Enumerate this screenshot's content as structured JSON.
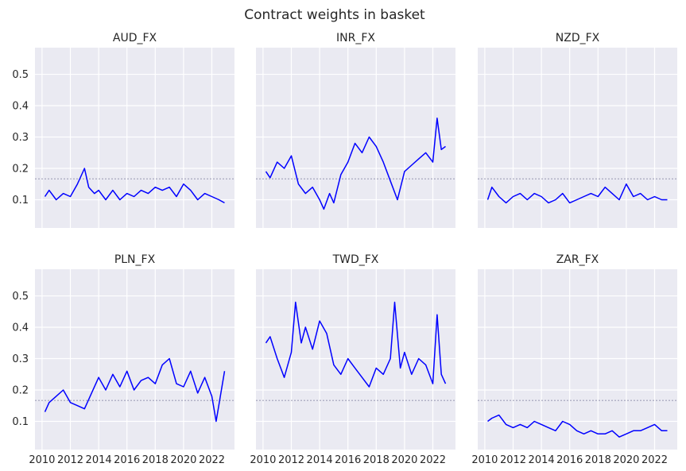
{
  "figure": {
    "title": "Contract weights in basket"
  },
  "chart_data": {
    "type": "line",
    "grid": true,
    "shared_y": true,
    "ylim": [
      0.01,
      0.585
    ],
    "yticks": [
      0.1,
      0.2,
      0.3,
      0.4,
      0.5
    ],
    "ytick_labels": [
      "0.1",
      "0.2",
      "0.3",
      "0.4",
      "0.5"
    ],
    "xlim": [
      2009.5,
      2023.6
    ],
    "xticks": [
      2010,
      2012,
      2014,
      2016,
      2018,
      2020,
      2022
    ],
    "xtick_labels": [
      "2010",
      "2012",
      "2014",
      "2016",
      "2018",
      "2020",
      "2022"
    ],
    "reference_line": {
      "y": 0.1667,
      "style": "dashed",
      "color": "#7a7a9a"
    },
    "line_color": "#0000ff",
    "panels": [
      {
        "title": "AUD_FX",
        "x": [
          2010.2,
          2010.5,
          2011.0,
          2011.5,
          2012.0,
          2012.5,
          2013.0,
          2013.3,
          2013.7,
          2014.0,
          2014.5,
          2015.0,
          2015.5,
          2016.0,
          2016.5,
          2017.0,
          2017.5,
          2018.0,
          2018.5,
          2019.0,
          2019.5,
          2020.0,
          2020.5,
          2021.0,
          2021.5,
          2022.0,
          2022.5,
          2022.9
        ],
        "y": [
          0.11,
          0.13,
          0.1,
          0.12,
          0.11,
          0.15,
          0.2,
          0.14,
          0.12,
          0.13,
          0.1,
          0.13,
          0.1,
          0.12,
          0.11,
          0.13,
          0.12,
          0.14,
          0.13,
          0.14,
          0.11,
          0.15,
          0.13,
          0.1,
          0.12,
          0.11,
          0.1,
          0.09
        ]
      },
      {
        "title": "INR_FX",
        "x": [
          2010.2,
          2010.5,
          2011.0,
          2011.5,
          2012.0,
          2012.5,
          2013.0,
          2013.5,
          2014.0,
          2014.3,
          2014.7,
          2015.0,
          2015.5,
          2016.0,
          2016.5,
          2017.0,
          2017.5,
          2018.0,
          2018.5,
          2019.0,
          2019.5,
          2020.0,
          2020.5,
          2021.0,
          2021.5,
          2022.0,
          2022.3,
          2022.6,
          2022.9
        ],
        "y": [
          0.19,
          0.17,
          0.22,
          0.2,
          0.24,
          0.15,
          0.12,
          0.14,
          0.1,
          0.07,
          0.12,
          0.09,
          0.18,
          0.22,
          0.28,
          0.25,
          0.3,
          0.27,
          0.22,
          0.16,
          0.1,
          0.19,
          0.21,
          0.23,
          0.25,
          0.22,
          0.36,
          0.26,
          0.27
        ]
      },
      {
        "title": "NZD_FX",
        "x": [
          2010.2,
          2010.5,
          2011.0,
          2011.5,
          2012.0,
          2012.5,
          2013.0,
          2013.5,
          2014.0,
          2014.5,
          2015.0,
          2015.5,
          2016.0,
          2016.5,
          2017.0,
          2017.5,
          2018.0,
          2018.5,
          2019.0,
          2019.5,
          2020.0,
          2020.5,
          2021.0,
          2021.5,
          2022.0,
          2022.5,
          2022.9
        ],
        "y": [
          0.1,
          0.14,
          0.11,
          0.09,
          0.11,
          0.12,
          0.1,
          0.12,
          0.11,
          0.09,
          0.1,
          0.12,
          0.09,
          0.1,
          0.11,
          0.12,
          0.11,
          0.14,
          0.12,
          0.1,
          0.15,
          0.11,
          0.12,
          0.1,
          0.11,
          0.1,
          0.1
        ]
      },
      {
        "title": "PLN_FX",
        "x": [
          2010.2,
          2010.5,
          2011.0,
          2011.5,
          2012.0,
          2012.5,
          2013.0,
          2013.5,
          2014.0,
          2014.5,
          2015.0,
          2015.5,
          2016.0,
          2016.5,
          2017.0,
          2017.5,
          2018.0,
          2018.5,
          2019.0,
          2019.5,
          2020.0,
          2020.5,
          2021.0,
          2021.5,
          2022.0,
          2022.3,
          2022.6,
          2022.9
        ],
        "y": [
          0.13,
          0.16,
          0.18,
          0.2,
          0.16,
          0.15,
          0.14,
          0.19,
          0.24,
          0.2,
          0.25,
          0.21,
          0.26,
          0.2,
          0.23,
          0.24,
          0.22,
          0.28,
          0.3,
          0.22,
          0.21,
          0.26,
          0.19,
          0.24,
          0.18,
          0.1,
          0.18,
          0.26
        ]
      },
      {
        "title": "TWD_FX",
        "x": [
          2010.2,
          2010.5,
          2011.0,
          2011.5,
          2012.0,
          2012.3,
          2012.7,
          2013.0,
          2013.5,
          2014.0,
          2014.5,
          2015.0,
          2015.5,
          2016.0,
          2016.5,
          2017.0,
          2017.5,
          2018.0,
          2018.5,
          2019.0,
          2019.3,
          2019.7,
          2020.0,
          2020.5,
          2021.0,
          2021.5,
          2022.0,
          2022.3,
          2022.6,
          2022.9
        ],
        "y": [
          0.35,
          0.37,
          0.3,
          0.24,
          0.32,
          0.48,
          0.35,
          0.4,
          0.33,
          0.42,
          0.38,
          0.28,
          0.25,
          0.3,
          0.27,
          0.24,
          0.21,
          0.27,
          0.25,
          0.3,
          0.48,
          0.27,
          0.32,
          0.25,
          0.3,
          0.28,
          0.22,
          0.44,
          0.25,
          0.22
        ]
      },
      {
        "title": "ZAR_FX",
        "x": [
          2010.2,
          2010.5,
          2011.0,
          2011.5,
          2012.0,
          2012.5,
          2013.0,
          2013.5,
          2014.0,
          2014.5,
          2015.0,
          2015.5,
          2016.0,
          2016.5,
          2017.0,
          2017.5,
          2018.0,
          2018.5,
          2019.0,
          2019.5,
          2020.0,
          2020.5,
          2021.0,
          2021.5,
          2022.0,
          2022.5,
          2022.9
        ],
        "y": [
          0.1,
          0.11,
          0.12,
          0.09,
          0.08,
          0.09,
          0.08,
          0.1,
          0.09,
          0.08,
          0.07,
          0.1,
          0.09,
          0.07,
          0.06,
          0.07,
          0.06,
          0.06,
          0.07,
          0.05,
          0.06,
          0.07,
          0.07,
          0.08,
          0.09,
          0.07,
          0.07
        ]
      }
    ]
  }
}
